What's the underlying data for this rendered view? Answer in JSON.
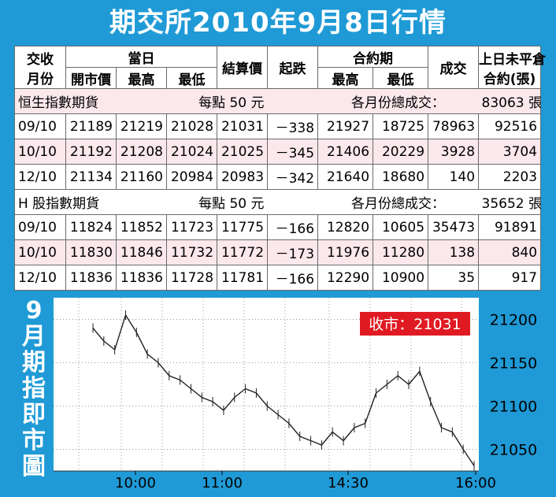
{
  "title": "期交所2010年9月8日行情",
  "header": {
    "month_line1": "交收",
    "month_line2": "月份",
    "day_group": "當日",
    "open": "開市價",
    "high": "最高",
    "low": "最低",
    "settle": "結算價",
    "change": "起跌",
    "contract_group": "合約期",
    "c_high": "最高",
    "c_low": "最低",
    "volume": "成交",
    "oi_line1": "上日未平倉",
    "oi_line2": "合約(張)"
  },
  "sections": [
    {
      "name": "恒生指數期貨",
      "per_point": "每點 50 元",
      "volume_label": "各月份總成交：",
      "total_volume": "83063 張",
      "rows": [
        {
          "month": "09/10",
          "open": "21189",
          "high": "21219",
          "low": "21028",
          "settle": "21031",
          "change": "－338",
          "c_high": "21927",
          "c_low": "18725",
          "volume": "78963",
          "oi": "92516"
        },
        {
          "month": "10/10",
          "open": "21192",
          "high": "21208",
          "low": "21024",
          "settle": "21025",
          "change": "－345",
          "c_high": "21406",
          "c_low": "20229",
          "volume": "3928",
          "oi": "3704"
        },
        {
          "month": "12/10",
          "open": "21134",
          "high": "21160",
          "low": "20984",
          "settle": "20983",
          "change": "－342",
          "c_high": "21640",
          "c_low": "18680",
          "volume": "140",
          "oi": "2203"
        }
      ]
    },
    {
      "name": "H 股指數期貨",
      "per_point": "每點 50 元",
      "volume_label": "各月份總成交：",
      "total_volume": "35652 張",
      "rows": [
        {
          "month": "09/10",
          "open": "11824",
          "high": "11852",
          "low": "11723",
          "settle": "11775",
          "change": "－166",
          "c_high": "12820",
          "c_low": "10605",
          "volume": "35473",
          "oi": "91891"
        },
        {
          "month": "10/10",
          "open": "11830",
          "high": "11846",
          "low": "11732",
          "settle": "11772",
          "change": "－173",
          "c_high": "11976",
          "c_low": "11280",
          "volume": "138",
          "oi": "840"
        },
        {
          "month": "12/10",
          "open": "11836",
          "high": "11836",
          "low": "11728",
          "settle": "11781",
          "change": "－166",
          "c_high": "12290",
          "c_low": "10900",
          "volume": "35",
          "oi": "917"
        }
      ]
    }
  ],
  "chart": {
    "label": [
      "9",
      "月",
      "期",
      "指",
      "即",
      "市",
      "圖"
    ],
    "close_tag": "收市：21031",
    "y_ticks": [
      "21200",
      "21150",
      "21100",
      "21050"
    ],
    "x_ticks": [
      "10:00",
      "11:00",
      "14:30",
      "16:00"
    ],
    "colors": {
      "background": "#1f9ad6",
      "tag": "#e01a22",
      "pink_row": "#fbe8ec"
    }
  },
  "chart_data": {
    "type": "line",
    "title": "",
    "xlabel": "",
    "ylabel": "",
    "x": [
      "09:45",
      "09:50",
      "09:55",
      "10:00",
      "10:05",
      "10:10",
      "10:15",
      "10:20",
      "10:25",
      "10:30",
      "10:40",
      "10:50",
      "11:00",
      "11:10",
      "11:20",
      "11:30",
      "11:40",
      "11:50",
      "12:00",
      "12:10",
      "12:20",
      "12:30",
      "14:30",
      "14:40",
      "14:50",
      "15:00",
      "15:10",
      "15:20",
      "15:30",
      "15:40",
      "15:45",
      "15:50",
      "15:55",
      "16:00",
      "16:05",
      "16:10"
    ],
    "y": [
      21190,
      21175,
      21165,
      21205,
      21185,
      21160,
      21150,
      21135,
      21130,
      21120,
      21110,
      21105,
      21095,
      21110,
      21120,
      21115,
      21100,
      21090,
      21080,
      21065,
      21060,
      21055,
      21070,
      21060,
      21075,
      21080,
      21115,
      21125,
      21135,
      21125,
      21140,
      21105,
      21075,
      21070,
      21050,
      21031
    ],
    "ylim": [
      21025,
      21225
    ],
    "yticks": [
      21050,
      21100,
      21150,
      21200
    ],
    "grid": true
  }
}
